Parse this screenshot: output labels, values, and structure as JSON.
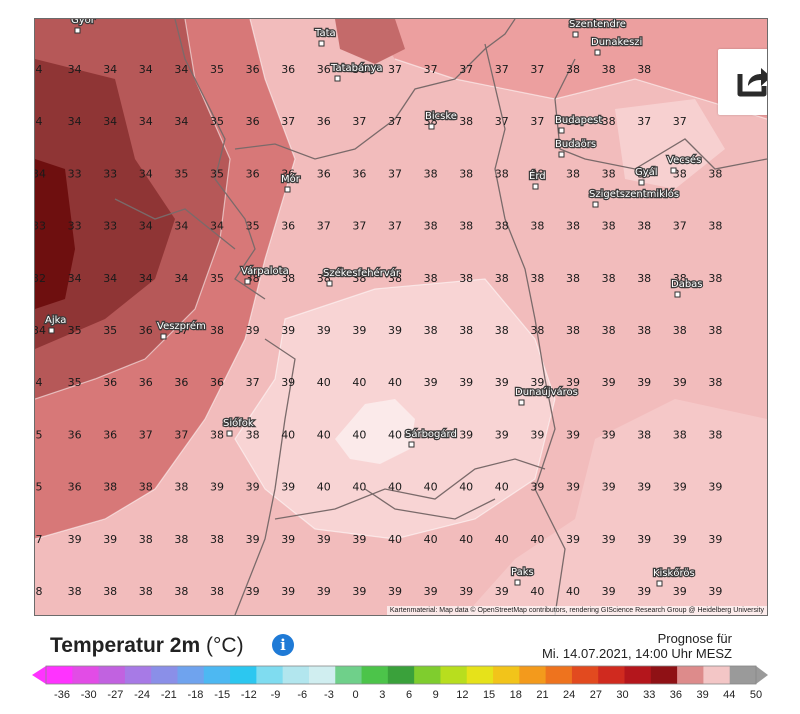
{
  "map": {
    "cities": [
      {
        "label": "Győr"
      },
      {
        "label": "Tata"
      },
      {
        "label": "Tatabánya"
      },
      {
        "label": "Szentendre"
      },
      {
        "label": "Dunakeszi"
      },
      {
        "label": "Budapest"
      },
      {
        "label": "Budaörs"
      },
      {
        "label": "Bicske"
      },
      {
        "label": "Érd"
      },
      {
        "label": "Gyál"
      },
      {
        "label": "Vecsés"
      },
      {
        "label": "Szigetszentmiklós"
      },
      {
        "label": "Mór"
      },
      {
        "label": "Várpalota"
      },
      {
        "label": "Székesfehérvár"
      },
      {
        "label": "Dabas"
      },
      {
        "label": "Ajka"
      },
      {
        "label": "Veszprém"
      },
      {
        "label": "Dunaújváros"
      },
      {
        "label": "Siófok"
      },
      {
        "label": "Sárbogárd"
      },
      {
        "label": "Paks"
      },
      {
        "label": "Kiskőrös"
      }
    ],
    "grid_values": [
      [
        "4",
        "34",
        "34",
        "34",
        "34",
        "35",
        "36",
        "36",
        "36",
        "36",
        "37",
        "37",
        "37",
        "37",
        "37",
        "38",
        "38",
        "38"
      ],
      [
        "4",
        "34",
        "34",
        "34",
        "34",
        "35",
        "36",
        "37",
        "36",
        "37",
        "37",
        "38",
        "38",
        "37",
        "37",
        "38",
        "38",
        "37",
        "37"
      ],
      [
        "34",
        "33",
        "33",
        "34",
        "35",
        "35",
        "36",
        "36",
        "36",
        "36",
        "37",
        "38",
        "38",
        "38",
        "38",
        "38",
        "38",
        "38",
        "38",
        "38"
      ],
      [
        "33",
        "33",
        "33",
        "34",
        "34",
        "34",
        "35",
        "36",
        "37",
        "37",
        "37",
        "38",
        "38",
        "38",
        "38",
        "38",
        "38",
        "38",
        "37",
        "38"
      ],
      [
        "32",
        "34",
        "34",
        "34",
        "34",
        "35",
        "38",
        "38",
        "38",
        "38",
        "38",
        "38",
        "38",
        "38",
        "38",
        "38",
        "38",
        "38",
        "38",
        "38"
      ],
      [
        "34",
        "35",
        "35",
        "36",
        "37",
        "38",
        "39",
        "39",
        "39",
        "39",
        "39",
        "38",
        "38",
        "38",
        "38",
        "38",
        "38",
        "38",
        "38",
        "38"
      ],
      [
        "4",
        "35",
        "36",
        "36",
        "36",
        "36",
        "37",
        "39",
        "40",
        "40",
        "40",
        "39",
        "39",
        "39",
        "39",
        "39",
        "39",
        "39",
        "39",
        "38"
      ],
      [
        "5",
        "36",
        "36",
        "37",
        "37",
        "38",
        "38",
        "40",
        "40",
        "40",
        "40",
        "40",
        "39",
        "39",
        "39",
        "39",
        "39",
        "38",
        "38",
        "38"
      ],
      [
        "5",
        "36",
        "38",
        "38",
        "38",
        "39",
        "39",
        "39",
        "40",
        "40",
        "40",
        "40",
        "40",
        "40",
        "39",
        "39",
        "39",
        "39",
        "39",
        "39"
      ],
      [
        "7",
        "39",
        "39",
        "38",
        "38",
        "38",
        "39",
        "39",
        "39",
        "39",
        "40",
        "40",
        "40",
        "40",
        "40",
        "39",
        "39",
        "39",
        "39",
        "39"
      ],
      [
        "8",
        "38",
        "38",
        "38",
        "38",
        "38",
        "39",
        "39",
        "39",
        "39",
        "39",
        "39",
        "39",
        "39",
        "40",
        "40",
        "39",
        "39",
        "39",
        "39"
      ]
    ],
    "share_icon": "share-icon",
    "attribution": "Kartenmaterial: Map data © OpenStreetMap contributors, rendering GIScience Research Group @ Heidelberg University"
  },
  "legend": {
    "title": "Temperatur 2m",
    "unit": "(°C)",
    "info_icon": "info-icon",
    "forecast_line1": "Prognose für",
    "forecast_line2": "Mi. 14.07.2021, 14:00 Uhr MESZ",
    "ticks": [
      "-36",
      "-30",
      "-27",
      "-24",
      "-21",
      "-18",
      "-15",
      "-12",
      "-9",
      "-6",
      "-3",
      "0",
      "3",
      "6",
      "9",
      "12",
      "15",
      "18",
      "21",
      "24",
      "27",
      "30",
      "33",
      "36",
      "39",
      "44",
      "50"
    ],
    "colors": [
      "#ff33ff",
      "#e24ce6",
      "#c162e0",
      "#a77ae6",
      "#8a8fe8",
      "#6fa3ee",
      "#4db8f2",
      "#2cc7f0",
      "#7fdcf0",
      "#b2e6ee",
      "#d0eef0",
      "#6fd08a",
      "#4cc44a",
      "#3aa13b",
      "#7fcd2e",
      "#b8de1e",
      "#e6e21a",
      "#f2c41a",
      "#f39a1c",
      "#ee731e",
      "#e24a1f",
      "#d02a1f",
      "#b4161c",
      "#8f1115",
      "#dd8b8b",
      "#f3c6c6",
      "#9a9a9a"
    ]
  }
}
